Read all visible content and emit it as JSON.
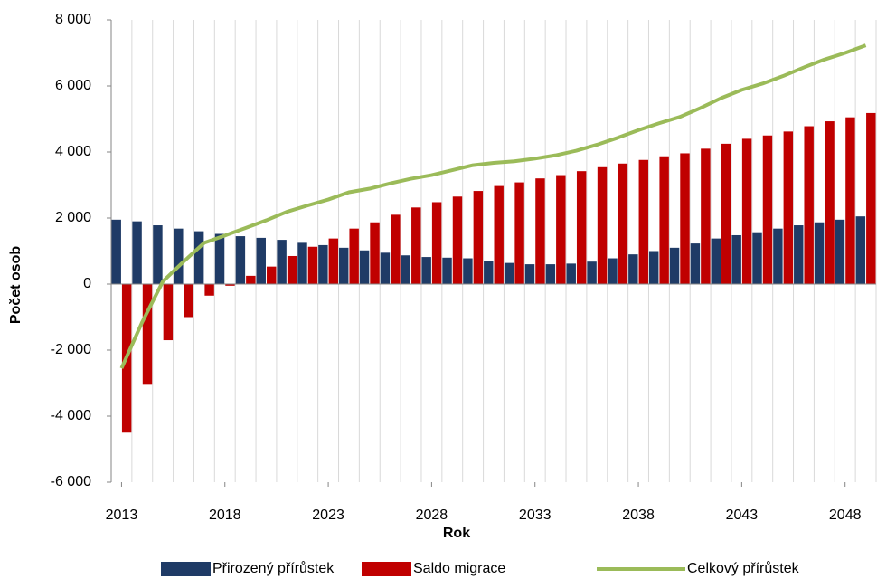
{
  "chart_data": {
    "type": "bar-line",
    "x_label": "Rok",
    "y_label": "Počet osob",
    "x": [
      2013,
      2014,
      2015,
      2016,
      2017,
      2018,
      2019,
      2020,
      2021,
      2022,
      2023,
      2024,
      2025,
      2026,
      2027,
      2028,
      2029,
      2030,
      2031,
      2032,
      2033,
      2034,
      2035,
      2036,
      2037,
      2038,
      2039,
      2040,
      2041,
      2042,
      2043,
      2044,
      2045,
      2046,
      2047,
      2048,
      2049
    ],
    "xlim": [
      2012.5,
      2049.5
    ],
    "xticks": [
      2013,
      2018,
      2023,
      2028,
      2033,
      2038,
      2043,
      2048
    ],
    "ylim": [
      -6000,
      8000
    ],
    "yticks": [
      {
        "value": -6000,
        "label": "-6 000"
      },
      {
        "value": -4000,
        "label": "-4 000"
      },
      {
        "value": -2000,
        "label": "-2 000"
      },
      0,
      {
        "value": 2000,
        "label": "2 000"
      },
      {
        "value": 4000,
        "label": "4 000"
      },
      {
        "value": 6000,
        "label": "6 000"
      },
      {
        "value": 8000,
        "label": "8 000"
      }
    ],
    "legend": "bottom",
    "series": [
      {
        "name": "Přirozený přírůstek",
        "color": "#1f3b66",
        "kind": "bar",
        "values": [
          1950,
          1900,
          1780,
          1680,
          1600,
          1520,
          1450,
          1400,
          1340,
          1250,
          1180,
          1100,
          1020,
          950,
          870,
          820,
          800,
          780,
          700,
          640,
          600,
          600,
          620,
          680,
          780,
          900,
          1000,
          1100,
          1230,
          1380,
          1480,
          1570,
          1680,
          1780,
          1870,
          1950,
          2050
        ]
      },
      {
        "name": "Saldo migrace",
        "color": "#c00000",
        "kind": "bar",
        "values": [
          -4500,
          -3050,
          -1700,
          -1000,
          -350,
          -50,
          250,
          530,
          850,
          1130,
          1380,
          1680,
          1870,
          2100,
          2320,
          2480,
          2650,
          2820,
          2970,
          3080,
          3200,
          3300,
          3420,
          3540,
          3650,
          3760,
          3870,
          3960,
          4100,
          4250,
          4400,
          4500,
          4620,
          4780,
          4930,
          5050,
          5180
        ]
      },
      {
        "name": "Celkový přírůstek",
        "color": "#9bbb59",
        "kind": "line",
        "values": [
          -2550,
          -1150,
          80,
          680,
          1250,
          1470,
          1700,
          1930,
          2190,
          2380,
          2560,
          2780,
          2890,
          3050,
          3190,
          3300,
          3450,
          3600,
          3670,
          3720,
          3800,
          3900,
          4040,
          4220,
          4430,
          4660,
          4870,
          5060,
          5330,
          5630,
          5880,
          6070,
          6300,
          6560,
          6800,
          7000,
          7230
        ]
      }
    ]
  }
}
